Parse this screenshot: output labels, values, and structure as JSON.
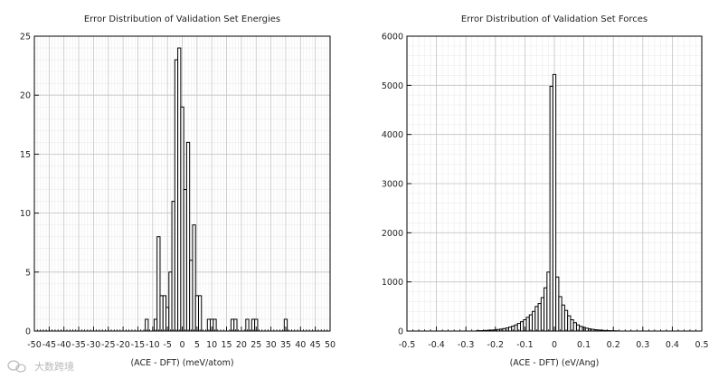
{
  "chart_data": [
    {
      "type": "bar",
      "title": "Error Distribution of Validation Set Energies",
      "xlabel": "(ACE - DFT) (meV/atom)",
      "ylabel": "",
      "xlim": [
        -50,
        50
      ],
      "ylim": [
        0,
        25
      ],
      "xticks": [
        -50,
        -45,
        -40,
        -35,
        -30,
        -25,
        -20,
        -15,
        -10,
        -5,
        0,
        5,
        10,
        15,
        20,
        25,
        30,
        35,
        40,
        45,
        50
      ],
      "yticks": [
        0,
        5,
        10,
        15,
        20,
        25
      ],
      "grid": true,
      "bin_width": 1,
      "bins": [
        {
          "x": -12,
          "count": 1
        },
        {
          "x": -9,
          "count": 1
        },
        {
          "x": -8,
          "count": 8
        },
        {
          "x": -7,
          "count": 3
        },
        {
          "x": -6,
          "count": 3
        },
        {
          "x": -5,
          "count": 2
        },
        {
          "x": -4,
          "count": 5
        },
        {
          "x": -3,
          "count": 11
        },
        {
          "x": -2,
          "count": 23
        },
        {
          "x": -1,
          "count": 24
        },
        {
          "x": 0,
          "count": 19
        },
        {
          "x": 1,
          "count": 12
        },
        {
          "x": 2,
          "count": 16
        },
        {
          "x": 3,
          "count": 6
        },
        {
          "x": 4,
          "count": 9
        },
        {
          "x": 5,
          "count": 3
        },
        {
          "x": 6,
          "count": 3
        },
        {
          "x": 9,
          "count": 1
        },
        {
          "x": 10,
          "count": 1
        },
        {
          "x": 11,
          "count": 1
        },
        {
          "x": 17,
          "count": 1
        },
        {
          "x": 18,
          "count": 1
        },
        {
          "x": 22,
          "count": 1
        },
        {
          "x": 24,
          "count": 1
        },
        {
          "x": 25,
          "count": 1
        },
        {
          "x": 35,
          "count": 1
        }
      ]
    },
    {
      "type": "bar",
      "title": "Error Distribution of Validation Set Forces",
      "xlabel": "(ACE - DFT) (eV/Ang)",
      "ylabel": "",
      "xlim": [
        -0.5,
        0.5
      ],
      "ylim": [
        0,
        6000
      ],
      "xticks": [
        -0.5,
        -0.4,
        -0.3,
        -0.2,
        -0.1,
        0,
        0.1,
        0.2,
        0.3,
        0.4,
        0.5
      ],
      "yticks": [
        0,
        1000,
        2000,
        3000,
        4000,
        5000,
        6000
      ],
      "grid": true,
      "bin_width": 0.01,
      "bins": [
        {
          "x": -0.26,
          "count": 6
        },
        {
          "x": -0.25,
          "count": 8
        },
        {
          "x": -0.24,
          "count": 10
        },
        {
          "x": -0.23,
          "count": 13
        },
        {
          "x": -0.22,
          "count": 16
        },
        {
          "x": -0.21,
          "count": 20
        },
        {
          "x": -0.2,
          "count": 25
        },
        {
          "x": -0.19,
          "count": 32
        },
        {
          "x": -0.18,
          "count": 40
        },
        {
          "x": -0.17,
          "count": 50
        },
        {
          "x": -0.16,
          "count": 63
        },
        {
          "x": -0.15,
          "count": 80
        },
        {
          "x": -0.14,
          "count": 100
        },
        {
          "x": -0.13,
          "count": 125
        },
        {
          "x": -0.12,
          "count": 155
        },
        {
          "x": -0.11,
          "count": 190
        },
        {
          "x": -0.1,
          "count": 230
        },
        {
          "x": -0.09,
          "count": 280
        },
        {
          "x": -0.08,
          "count": 330
        },
        {
          "x": -0.07,
          "count": 400
        },
        {
          "x": -0.06,
          "count": 500
        },
        {
          "x": -0.05,
          "count": 560
        },
        {
          "x": -0.04,
          "count": 680
        },
        {
          "x": -0.03,
          "count": 880
        },
        {
          "x": -0.02,
          "count": 1200
        },
        {
          "x": -0.01,
          "count": 4980
        },
        {
          "x": 0.0,
          "count": 5220
        },
        {
          "x": 0.01,
          "count": 1100
        },
        {
          "x": 0.02,
          "count": 700
        },
        {
          "x": 0.03,
          "count": 530
        },
        {
          "x": 0.04,
          "count": 420
        },
        {
          "x": 0.05,
          "count": 310
        },
        {
          "x": 0.06,
          "count": 230
        },
        {
          "x": 0.07,
          "count": 170
        },
        {
          "x": 0.08,
          "count": 125
        },
        {
          "x": 0.09,
          "count": 95
        },
        {
          "x": 0.1,
          "count": 75
        },
        {
          "x": 0.11,
          "count": 58
        },
        {
          "x": 0.12,
          "count": 45
        },
        {
          "x": 0.13,
          "count": 35
        },
        {
          "x": 0.14,
          "count": 27
        },
        {
          "x": 0.15,
          "count": 21
        },
        {
          "x": 0.16,
          "count": 16
        },
        {
          "x": 0.17,
          "count": 12
        },
        {
          "x": 0.18,
          "count": 9
        },
        {
          "x": 0.19,
          "count": 7
        },
        {
          "x": 0.2,
          "count": 5
        },
        {
          "x": 0.21,
          "count": 4
        }
      ]
    }
  ],
  "watermark": {
    "text": "大数跨境",
    "icon": "wechat-logo-icon"
  }
}
